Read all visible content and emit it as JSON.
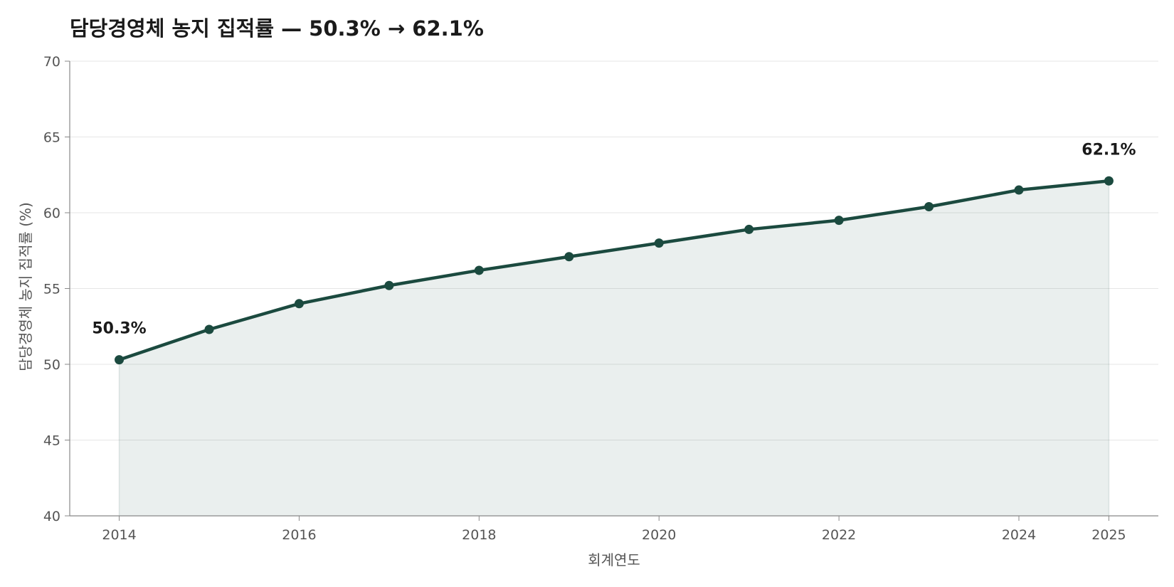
{
  "chart_data": {
    "type": "area",
    "title": "담당경영체 농지 집적률 — 50.3% → 62.1%",
    "xlabel": "회계연도",
    "ylabel": "담당경영체 농지 집적률 (%)",
    "x": [
      2014,
      2015,
      2016,
      2017,
      2018,
      2019,
      2020,
      2021,
      2022,
      2023,
      2024,
      2025
    ],
    "series": [
      {
        "values": [
          50.3,
          52.3,
          54.0,
          55.2,
          56.2,
          57.1,
          58.0,
          58.9,
          59.5,
          60.4,
          61.5,
          62.1
        ]
      }
    ],
    "x_ticks": [
      2014,
      2016,
      2018,
      2020,
      2022,
      2024,
      2025
    ],
    "y_ticks": [
      40,
      45,
      50,
      55,
      60,
      65,
      70
    ],
    "xlim": [
      2013.45,
      2025.55
    ],
    "ylim": [
      40,
      70
    ],
    "annotations": [
      {
        "x": 2014,
        "y": 50.3,
        "text": "50.3%"
      },
      {
        "x": 2025,
        "y": 62.1,
        "text": "62.1%"
      }
    ],
    "grid": "horizontal",
    "colors": {
      "line": "#1b4a3f",
      "fill": "#1b4a3f",
      "grid": "#e6e6e6",
      "axis": "#888888"
    }
  }
}
